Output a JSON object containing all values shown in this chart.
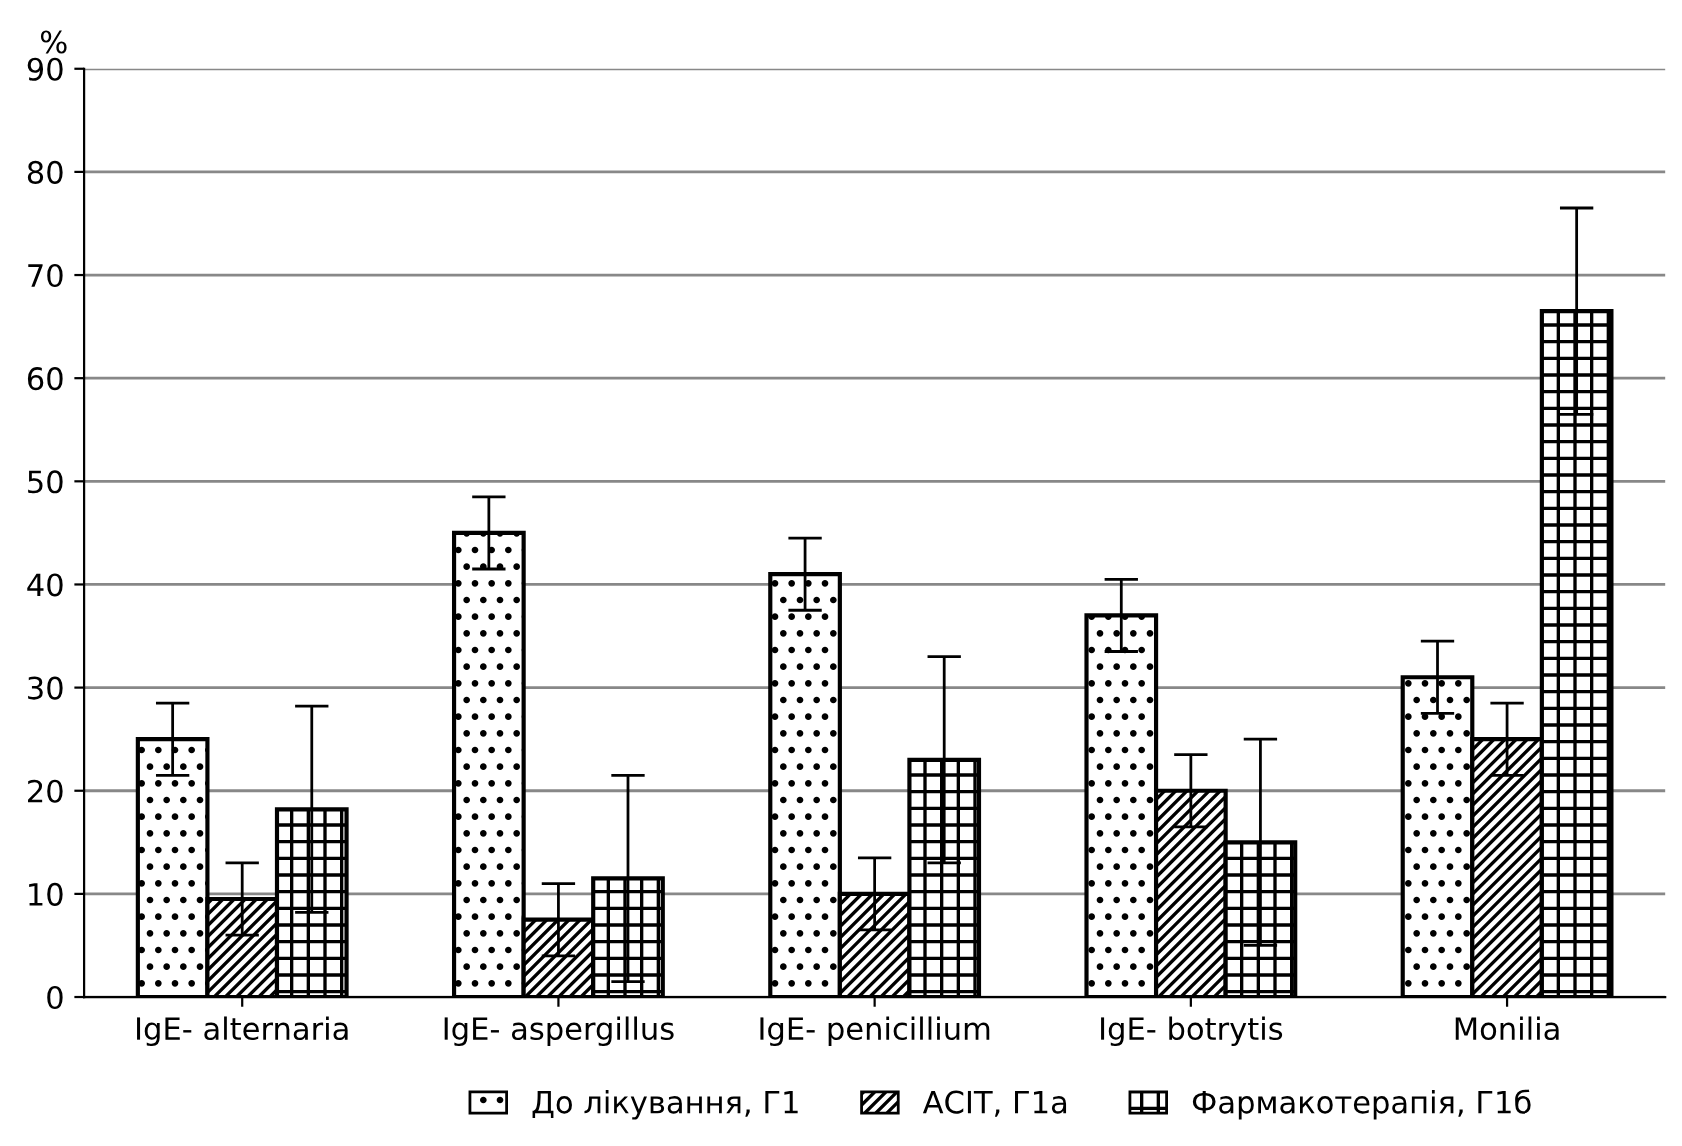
{
  "chart_data": {
    "type": "bar",
    "ylabel": "%",
    "categories": [
      "IgE- alternaria",
      "IgE- aspergillus",
      "IgE- penicillium",
      "IgE- botrytis",
      "Monilia"
    ],
    "series": [
      {
        "name": "До лікування, Г1",
        "color": "#000000",
        "values": [
          25,
          45,
          41,
          37,
          31
        ],
        "errors": [
          3.5,
          3.5,
          3.5,
          3.5,
          3.5
        ]
      },
      {
        "name": "АСІТ, Г1а",
        "color": "#000000",
        "values": [
          9.5,
          7.5,
          10,
          20,
          25
        ],
        "errors": [
          3.5,
          3.5,
          3.5,
          3.5,
          3.5
        ]
      },
      {
        "name": "Фармакотерапія, Г1б",
        "color": "#000000",
        "values": [
          18.2,
          11.5,
          23,
          15,
          66.5
        ],
        "errors": [
          10,
          10,
          10,
          10,
          10
        ]
      }
    ],
    "ylim": [
      0,
      90
    ],
    "yticks": [
      0,
      10,
      20,
      30,
      40,
      50,
      60,
      70,
      80,
      90
    ],
    "grid": "y",
    "legend": "bottom"
  }
}
